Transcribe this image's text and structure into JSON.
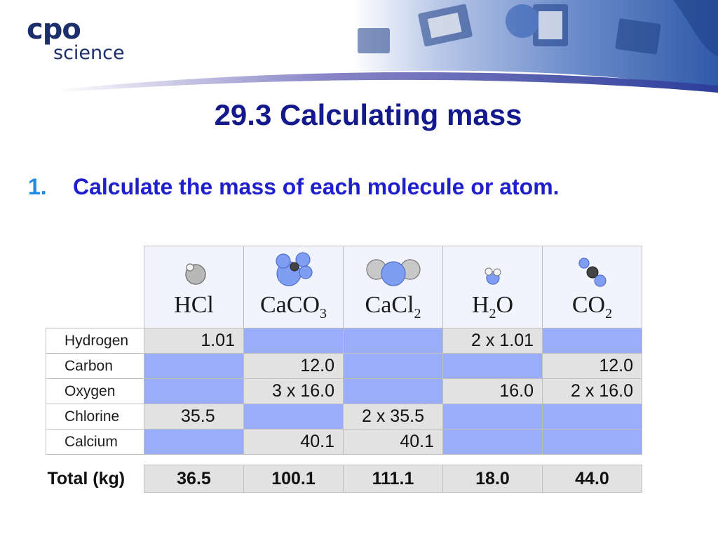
{
  "logo": {
    "line1": "cpo",
    "line2": "science"
  },
  "title": "29.3 Calculating mass",
  "question": {
    "number": "1.",
    "text": "Calculate the mass of each molecule or atom."
  },
  "table": {
    "columns": [
      {
        "base": "HCl",
        "sub": "",
        "tail": ""
      },
      {
        "base": "CaCO",
        "sub": "3",
        "tail": ""
      },
      {
        "base": "CaCl",
        "sub": "2",
        "tail": ""
      },
      {
        "base": "H",
        "sub": "2",
        "tail": "O"
      },
      {
        "base": "CO",
        "sub": "2",
        "tail": ""
      }
    ],
    "rows": [
      {
        "label": "Hydrogen",
        "cells": [
          "1.01",
          "",
          "",
          "2 x 1.01",
          ""
        ]
      },
      {
        "label": "Carbon",
        "cells": [
          "",
          "12.0",
          "",
          "",
          "12.0"
        ]
      },
      {
        "label": "Oxygen",
        "cells": [
          "",
          "3 x 16.0",
          "",
          "16.0",
          "2 x 16.0"
        ]
      },
      {
        "label": "Chlorine",
        "cells": [
          "35.5",
          "",
          "2 x 35.5",
          "",
          ""
        ]
      },
      {
        "label": "Calcium",
        "cells": [
          "",
          "40.1",
          "40.1",
          "",
          ""
        ]
      }
    ],
    "total": {
      "label": "Total (kg)",
      "values": [
        "36.5",
        "100.1",
        "111.1",
        "18.0",
        "44.0"
      ]
    }
  },
  "colors": {
    "title": "#141a8c",
    "question": "#1f1fcc",
    "number": "#1f8ce6",
    "filled_cell": "#e2e2e2",
    "empty_cell": "#99adfa"
  }
}
